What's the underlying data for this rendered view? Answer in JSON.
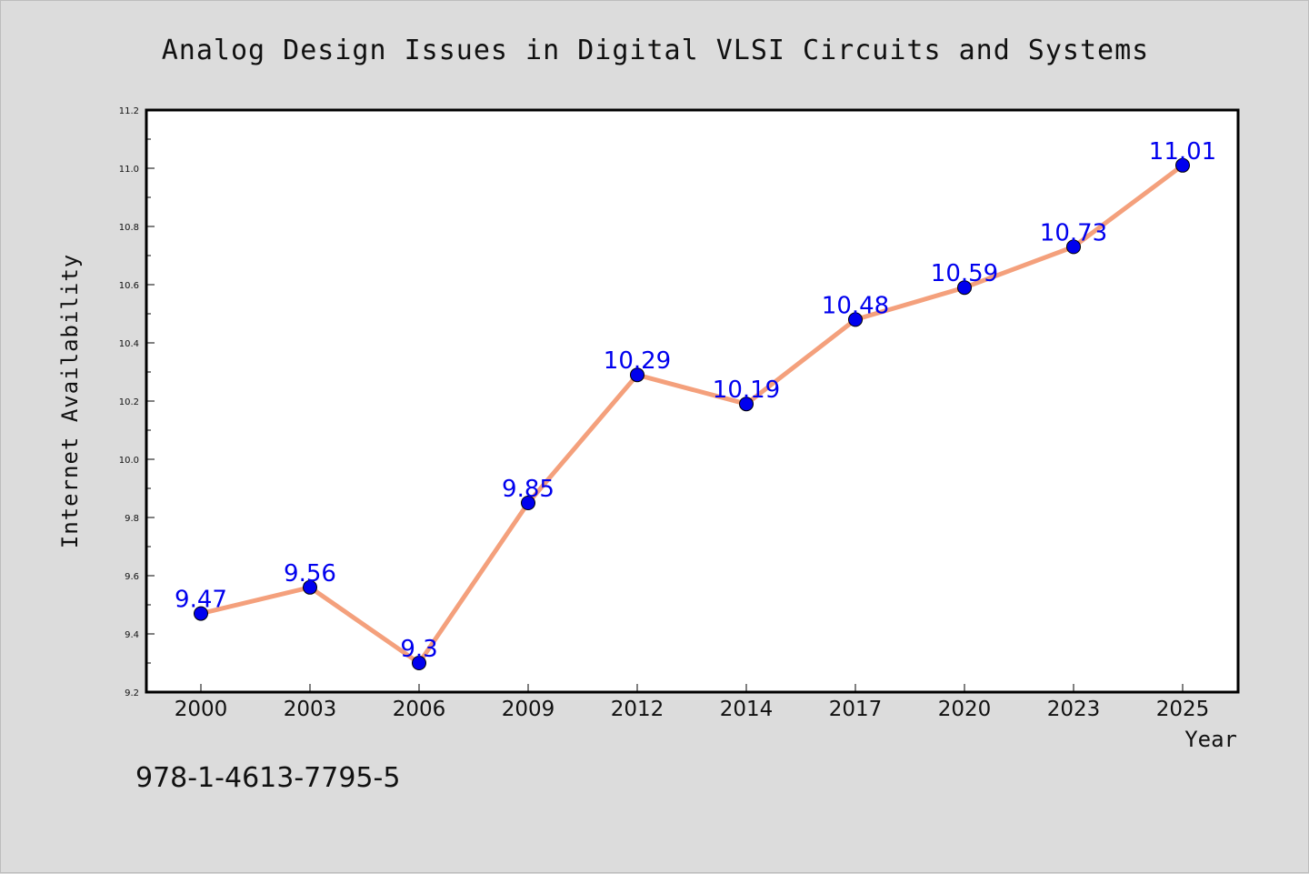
{
  "chart_data": {
    "type": "line",
    "title": "Analog Design Issues in Digital VLSI Circuits and Systems",
    "xlabel": "Year",
    "ylabel": "Internet Availability",
    "categories": [
      "2000",
      "2003",
      "2006",
      "2009",
      "2012",
      "2014",
      "2017",
      "2020",
      "2023",
      "2025"
    ],
    "values": [
      9.47,
      9.56,
      9.3,
      9.85,
      10.29,
      10.19,
      10.48,
      10.59,
      10.73,
      11.01
    ],
    "data_labels": [
      "9.47",
      "9.56",
      "9.3",
      "9.85",
      "10.29",
      "10.19",
      "10.48",
      "10.59",
      "10.73",
      "11.01"
    ],
    "ylim": [
      9.2,
      11.2
    ],
    "yticks": [
      "9.2",
      "9.4",
      "9.6",
      "9.8",
      "10.0",
      "10.2",
      "10.4",
      "10.6",
      "10.8",
      "11.0",
      "11.2"
    ],
    "grid": false,
    "line_color": "#f4a07c",
    "marker_color": "#0000ee",
    "label_color": "#0000ee"
  },
  "footer": {
    "isbn": "978-1-4613-7795-5"
  }
}
